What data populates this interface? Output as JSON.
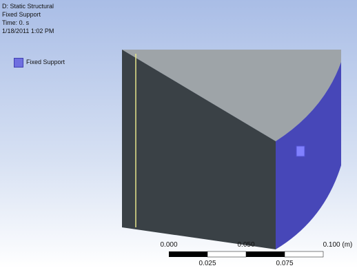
{
  "header": {
    "lines": [
      "D: Static Structural",
      "Fixed Support",
      "Time: 0. s",
      "1/18/2011 1:02 PM"
    ]
  },
  "legend": {
    "label": "Fixed Support"
  },
  "scale_bar": {
    "top_labels": [
      "0.000",
      "0.050",
      "0.100 (m)"
    ],
    "bottom_labels": [
      "0.025",
      "0.075"
    ]
  }
}
